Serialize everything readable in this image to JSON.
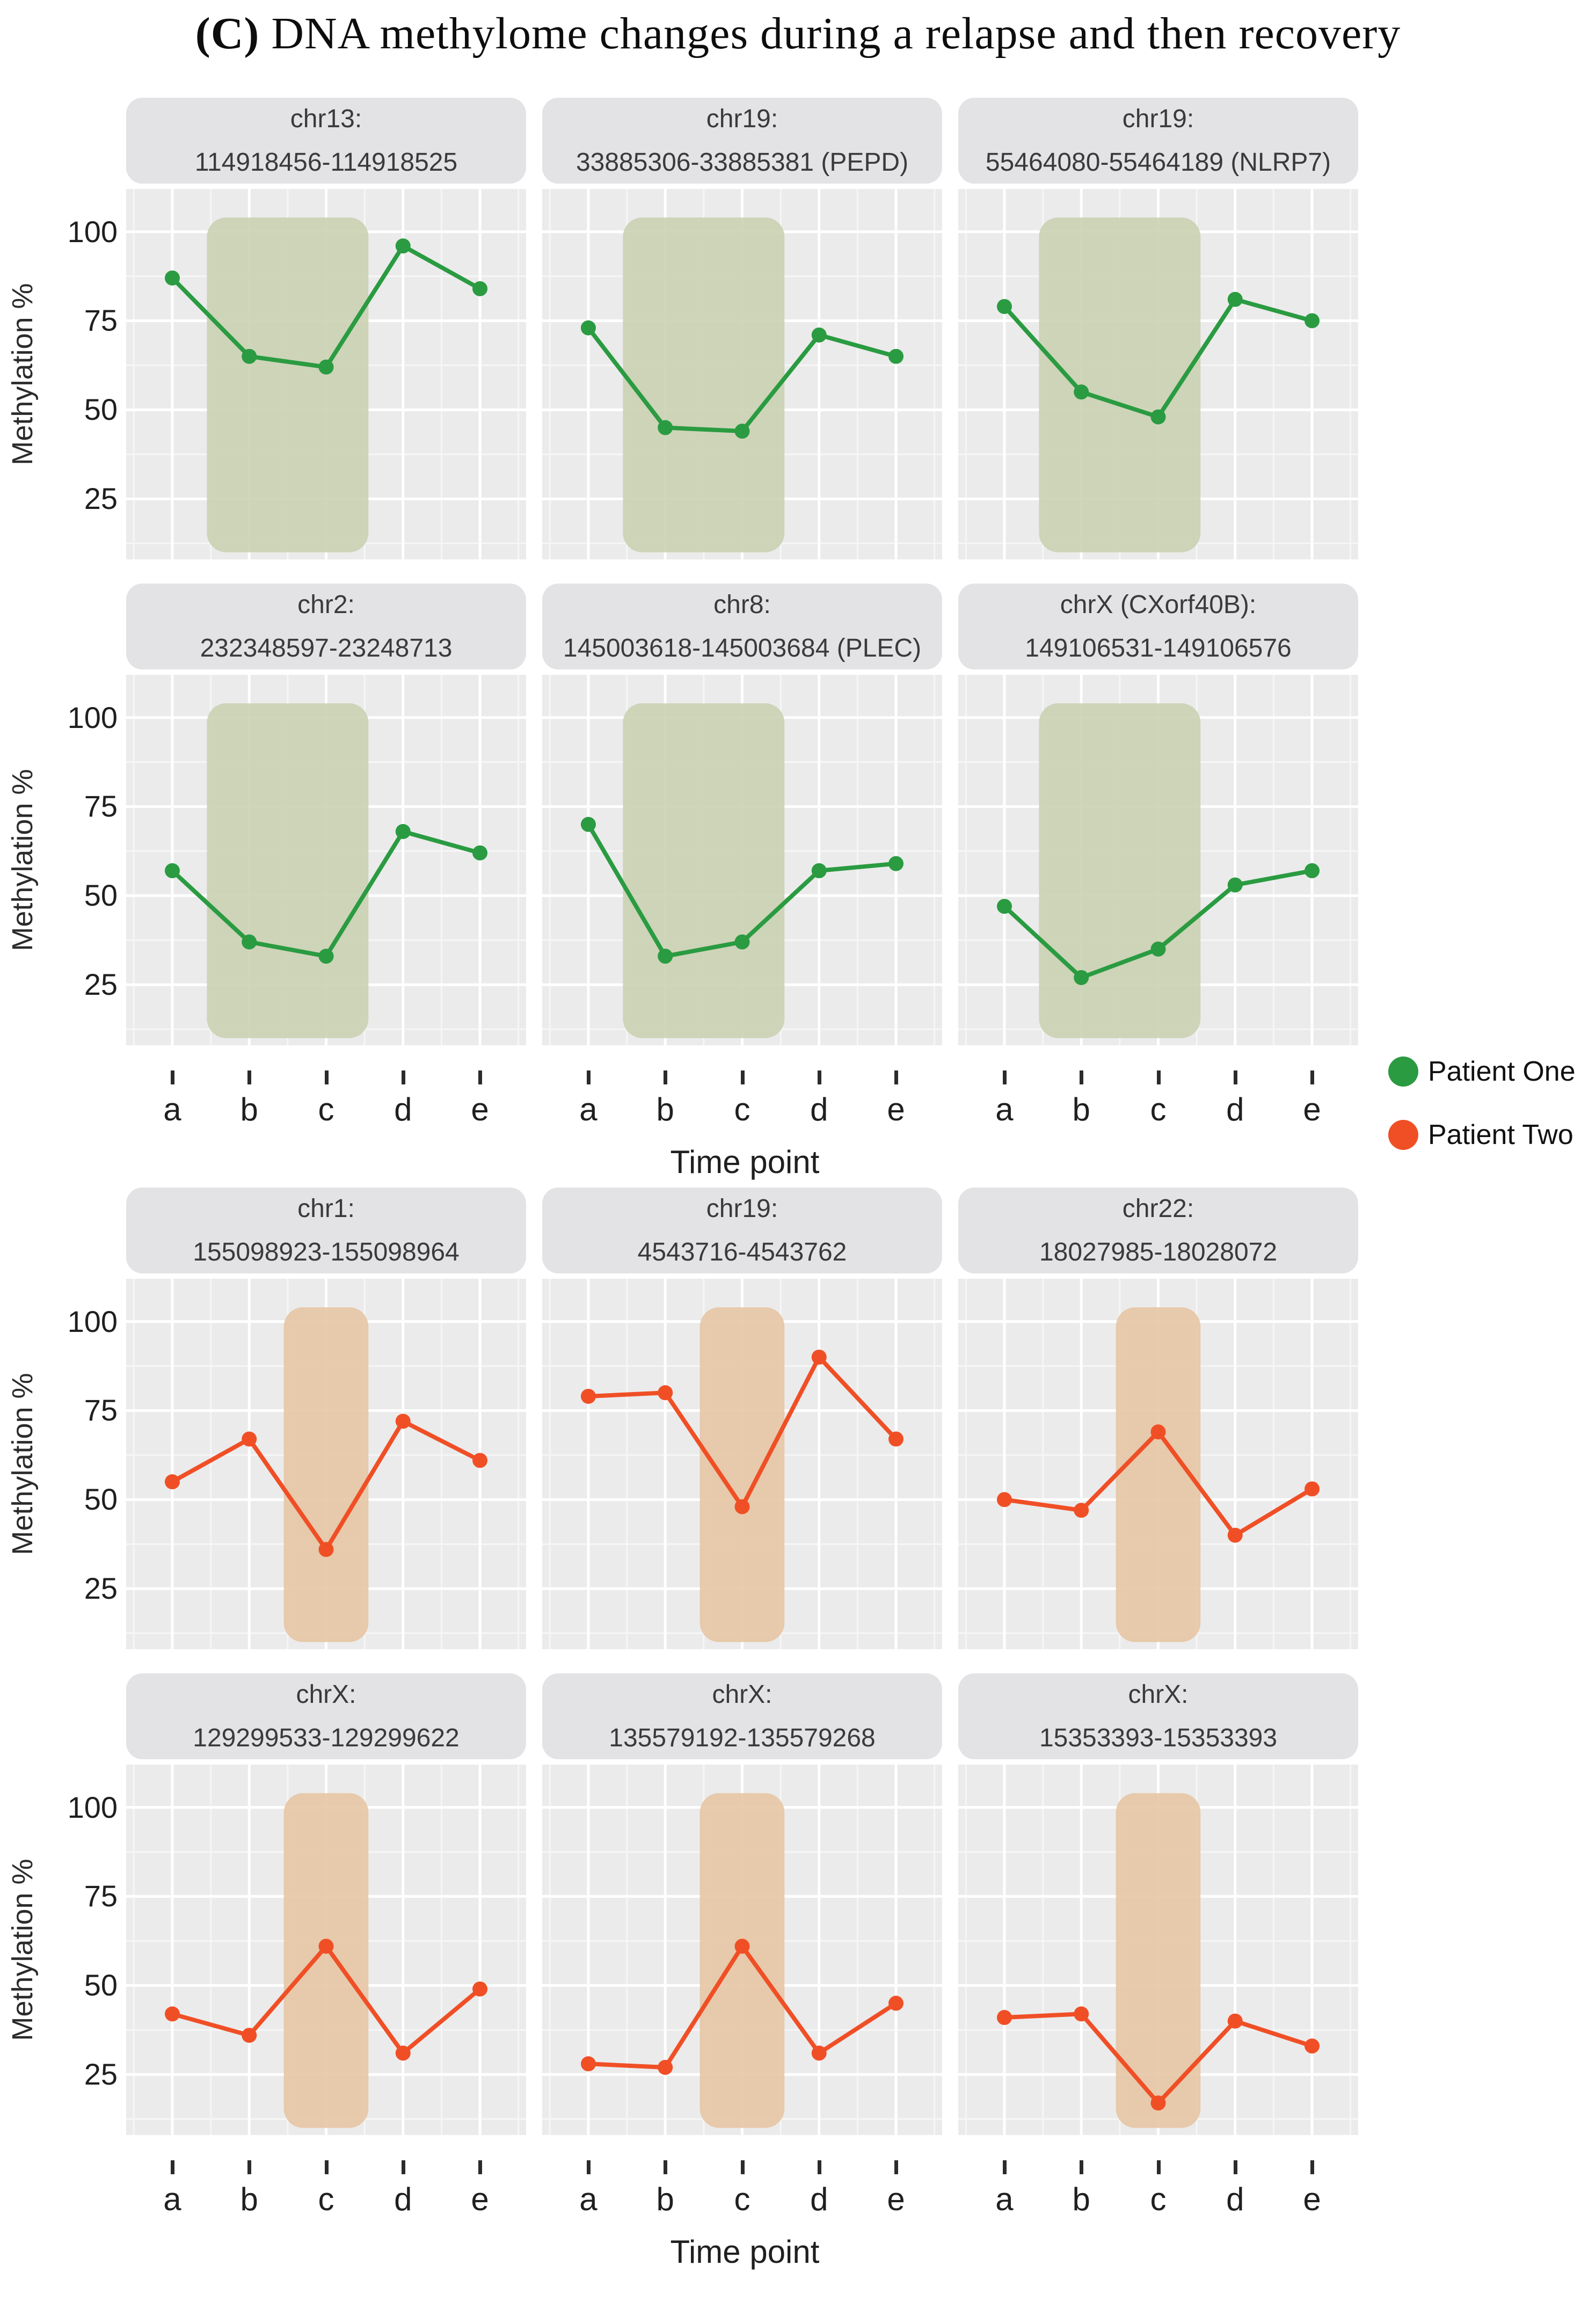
{
  "title": {
    "bold": "(C)",
    "rest": " DNA methylome changes during a relapse and then recovery"
  },
  "legend": {
    "items": [
      {
        "name": "Patient One",
        "color": "#2a9b41"
      },
      {
        "name": "Patient Two",
        "color": "#f04f26"
      }
    ]
  },
  "chart_data": {
    "type": "line",
    "categories": [
      "a",
      "b",
      "c",
      "d",
      "e"
    ],
    "xlabel": "Time point",
    "ylabel": "Methylation %",
    "y_ticks": [
      100,
      75,
      50,
      25
    ],
    "ylim": [
      10,
      110
    ],
    "grid": true,
    "legend_position": "right-middle",
    "series_meta": [
      {
        "name": "Patient One",
        "color": "#2a9b41",
        "band_color": "rgb(200,208,177)",
        "band_opacity": 0.88,
        "band_categories": [
          "b",
          "c"
        ]
      },
      {
        "name": "Patient Two",
        "color": "#f04f26",
        "band_color": "rgb(230,196,162)",
        "band_opacity": 0.88,
        "band_categories": [
          "c",
          "c"
        ]
      }
    ],
    "panels": [
      {
        "row": 1,
        "patient": "Patient One",
        "title": "chr13:",
        "subtitle": "114918456-114918525",
        "values": [
          87,
          65,
          62,
          96,
          84
        ]
      },
      {
        "row": 1,
        "patient": "Patient One",
        "title": "chr19:",
        "subtitle": "33885306-33885381 (PEPD)",
        "values": [
          73,
          45,
          44,
          71,
          65
        ]
      },
      {
        "row": 1,
        "patient": "Patient One",
        "title": "chr19:",
        "subtitle": "55464080-55464189 (NLRP7)",
        "values": [
          79,
          55,
          48,
          81,
          75
        ]
      },
      {
        "row": 2,
        "patient": "Patient One",
        "title": "chr2:",
        "subtitle": "232348597-23248713",
        "values": [
          57,
          37,
          33,
          68,
          62
        ]
      },
      {
        "row": 2,
        "patient": "Patient One",
        "title": "chr8:",
        "subtitle": "145003618-145003684 (PLEC)",
        "values": [
          70,
          33,
          37,
          57,
          59
        ]
      },
      {
        "row": 2,
        "patient": "Patient One",
        "title": "chrX (CXorf40B):",
        "subtitle": "149106531-149106576",
        "values": [
          47,
          27,
          35,
          53,
          57
        ]
      },
      {
        "row": 3,
        "patient": "Patient Two",
        "title": "chr1:",
        "subtitle": "155098923-155098964",
        "values": [
          55,
          67,
          36,
          72,
          61
        ]
      },
      {
        "row": 3,
        "patient": "Patient Two",
        "title": "chr19:",
        "subtitle": "4543716-4543762",
        "values": [
          79,
          80,
          48,
          90,
          67
        ]
      },
      {
        "row": 3,
        "patient": "Patient Two",
        "title": "chr22:",
        "subtitle": "18027985-18028072",
        "values": [
          50,
          47,
          69,
          40,
          53
        ]
      },
      {
        "row": 4,
        "patient": "Patient Two",
        "title": "chrX:",
        "subtitle": "129299533-129299622",
        "values": [
          42,
          36,
          61,
          31,
          49
        ]
      },
      {
        "row": 4,
        "patient": "Patient Two",
        "title": "chrX:",
        "subtitle": "135579192-135579268",
        "values": [
          28,
          27,
          61,
          31,
          45
        ]
      },
      {
        "row": 4,
        "patient": "Patient Two",
        "title": "chrX:",
        "subtitle": "15353393-15353393",
        "values": [
          41,
          42,
          17,
          40,
          33
        ]
      }
    ]
  }
}
